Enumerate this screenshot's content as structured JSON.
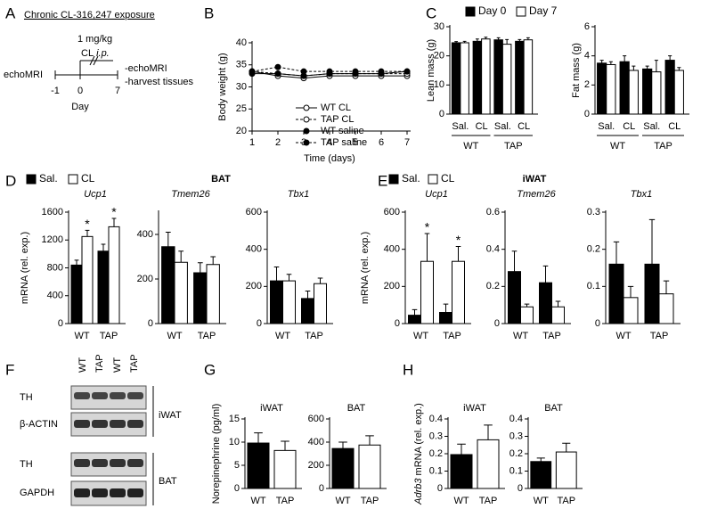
{
  "panel_labels": [
    "A",
    "B",
    "C",
    "D",
    "E",
    "F",
    "G",
    "H"
  ],
  "timeline": {
    "title": "Chronic CL-316,247 exposure",
    "dose": "1 mg/kg",
    "drug": "CL",
    "route": "i.p.",
    "start": "echoMRI",
    "ticks": [
      "-1",
      "0",
      "7"
    ],
    "axis": "Day",
    "end": [
      "-echoMRI",
      "-harvest tissues"
    ]
  },
  "headings": {
    "D": "BAT",
    "E": "iWAT"
  },
  "blot": {
    "lanes": [
      "WT",
      "TAP",
      "WT",
      "TAP"
    ],
    "rows": [
      "TH",
      "β-ACTIN",
      "TH",
      "GAPDH"
    ],
    "tissues": [
      "iWAT",
      "BAT"
    ]
  },
  "chart_data": [
    {
      "type": "line",
      "xlabel": "Time (days)",
      "ylabel": "Body weight (g)",
      "x": [
        1,
        2,
        3,
        4,
        5,
        6,
        7
      ],
      "xlim": [
        1,
        7
      ],
      "xticks": [
        1,
        2,
        3,
        4,
        5,
        6,
        7
      ],
      "ylim": [
        20,
        40
      ],
      "yticks": [
        20,
        25,
        30,
        35,
        40
      ],
      "series": [
        {
          "name": "WT CL",
          "color": "#000000",
          "filled": false,
          "dashed": false,
          "values": [
            33.5,
            32.5,
            32,
            32.5,
            32.5,
            32.5,
            32.5
          ]
        },
        {
          "name": "TAP CL",
          "color": "#000000",
          "filled": false,
          "dashed": true,
          "values": [
            33.5,
            33,
            32.5,
            33,
            33,
            33,
            33
          ]
        },
        {
          "name": "WT saline",
          "color": "#000000",
          "filled": true,
          "dashed": false,
          "values": [
            33,
            33,
            32.5,
            33,
            33,
            33,
            33.5
          ]
        },
        {
          "name": "TAP saline",
          "color": "#000000",
          "filled": true,
          "dashed": true,
          "values": [
            33.5,
            34.5,
            33.5,
            33.5,
            33.5,
            33.5,
            33.5
          ]
        }
      ]
    },
    {
      "type": "bar",
      "ylabel": "Lean mass (g)",
      "categories": [
        "Sal.",
        "CL",
        "Sal.",
        "CL"
      ],
      "groups": [
        "WT",
        "TAP"
      ],
      "ylim": [
        0,
        30
      ],
      "yticks": [
        0,
        10,
        20,
        30
      ],
      "series": [
        {
          "name": "Day 0",
          "color": "#000000",
          "values": [
            24.5,
            25,
            25.5,
            25
          ],
          "errors": [
            0.4,
            0.8,
            0.7,
            0.6
          ]
        },
        {
          "name": "Day 7",
          "color": "#ffffff",
          "values": [
            24.5,
            25.8,
            24,
            25.5
          ],
          "errors": [
            0.5,
            0.6,
            1.6,
            0.7
          ]
        }
      ]
    },
    {
      "type": "bar",
      "ylabel": "Fat mass (g)",
      "categories": [
        "Sal.",
        "CL",
        "Sal.",
        "CL"
      ],
      "groups": [
        "WT",
        "TAP"
      ],
      "ylim": [
        0,
        6
      ],
      "yticks": [
        0,
        2,
        4,
        6
      ],
      "series": [
        {
          "color": "#000000",
          "values": [
            3.5,
            3.6,
            3.1,
            3.7
          ],
          "errors": [
            0.2,
            0.4,
            0.2,
            0.3
          ]
        },
        {
          "color": "#ffffff",
          "values": [
            3.4,
            3.0,
            2.9,
            3.0
          ],
          "errors": [
            0.2,
            0.3,
            0.8,
            0.2
          ]
        }
      ]
    },
    {
      "type": "bar",
      "title": "Ucp1",
      "ylabel": "mRNA (rel. exp.)",
      "categories": [
        "WT",
        "TAP"
      ],
      "ylim": [
        0,
        1600
      ],
      "yticks": [
        0,
        400,
        800,
        1200,
        1600
      ],
      "series": [
        {
          "name": "Sal.",
          "color": "#000000",
          "values": [
            840,
            1040
          ],
          "errors": [
            70,
            100
          ]
        },
        {
          "name": "CL",
          "color": "#ffffff",
          "values": [
            1250,
            1390
          ],
          "errors": [
            90,
            120
          ],
          "significance": [
            "*",
            "*"
          ]
        }
      ]
    },
    {
      "type": "bar",
      "title": "Tmem26",
      "categories": [
        "WT",
        "TAP"
      ],
      "ylim": [
        0,
        500
      ],
      "yticks": [
        0,
        200,
        400
      ],
      "series": [
        {
          "color": "#000000",
          "values": [
            345,
            228
          ],
          "errors": [
            65,
            45
          ]
        },
        {
          "color": "#ffffff",
          "values": [
            275,
            265
          ],
          "errors": [
            50,
            35
          ]
        }
      ]
    },
    {
      "type": "bar",
      "title": "Tbx1",
      "categories": [
        "WT",
        "TAP"
      ],
      "ylim": [
        0,
        600
      ],
      "yticks": [
        0,
        200,
        400,
        600
      ],
      "series": [
        {
          "color": "#000000",
          "values": [
            230,
            135
          ],
          "errors": [
            75,
            40
          ]
        },
        {
          "color": "#ffffff",
          "values": [
            230,
            215
          ],
          "errors": [
            35,
            30
          ]
        }
      ]
    },
    {
      "type": "bar",
      "title": "Ucp1",
      "ylabel": "mRNA (rel. exp.)",
      "categories": [
        "WT",
        "TAP"
      ],
      "ylim": [
        0,
        600
      ],
      "yticks": [
        0,
        200,
        400,
        600
      ],
      "series": [
        {
          "name": "Sal.",
          "color": "#000000",
          "values": [
            45,
            60
          ],
          "errors": [
            30,
            45
          ]
        },
        {
          "name": "CL",
          "color": "#ffffff",
          "values": [
            335,
            335
          ],
          "errors": [
            150,
            80
          ],
          "significance": [
            "*",
            "*"
          ]
        }
      ]
    },
    {
      "type": "bar",
      "title": "Tmem26",
      "categories": [
        "WT",
        "TAP"
      ],
      "ylim": [
        0,
        0.6
      ],
      "yticks": [
        0,
        0.2,
        0.4,
        0.6
      ],
      "series": [
        {
          "color": "#000000",
          "values": [
            0.28,
            0.22
          ],
          "errors": [
            0.11,
            0.09
          ]
        },
        {
          "color": "#ffffff",
          "values": [
            0.09,
            0.09
          ],
          "errors": [
            0.015,
            0.03
          ]
        }
      ]
    },
    {
      "type": "bar",
      "title": "Tbx1",
      "categories": [
        "WT",
        "TAP"
      ],
      "ylim": [
        0,
        0.3
      ],
      "yticks": [
        0,
        0.1,
        0.2,
        0.3
      ],
      "series": [
        {
          "color": "#000000",
          "values": [
            0.16,
            0.16
          ],
          "errors": [
            0.06,
            0.12
          ]
        },
        {
          "color": "#ffffff",
          "values": [
            0.07,
            0.08
          ],
          "errors": [
            0.03,
            0.035
          ]
        }
      ]
    },
    {
      "type": "bar",
      "title": "iWAT",
      "ylabel": "Norepinephrine (pg/ml)",
      "categories": [
        "WT",
        "TAP"
      ],
      "ylim": [
        0,
        15
      ],
      "yticks": [
        0,
        5,
        10,
        15
      ],
      "series": [
        {
          "colors": [
            "#000000",
            "#ffffff"
          ],
          "values": [
            9.8,
            8.2
          ],
          "errors": [
            2.2,
            2.0
          ]
        }
      ]
    },
    {
      "type": "bar",
      "title": "BAT",
      "categories": [
        "WT",
        "TAP"
      ],
      "ylim": [
        0,
        600
      ],
      "yticks": [
        0,
        200,
        400,
        600
      ],
      "series": [
        {
          "colors": [
            "#000000",
            "#ffffff"
          ],
          "values": [
            345,
            375
          ],
          "errors": [
            55,
            80
          ]
        }
      ]
    },
    {
      "type": "bar",
      "title": "iWAT",
      "ylabel_gene": "Adrb3",
      "ylabel": "mRNA (rel. exp.)",
      "categories": [
        "WT",
        "TAP"
      ],
      "ylim": [
        0,
        0.4
      ],
      "yticks": [
        0,
        0.1,
        0.2,
        0.3,
        0.4
      ],
      "series": [
        {
          "colors": [
            "#000000",
            "#ffffff"
          ],
          "values": [
            0.195,
            0.28
          ],
          "errors": [
            0.06,
            0.085
          ]
        }
      ]
    },
    {
      "type": "bar",
      "title": "BAT",
      "categories": [
        "WT",
        "TAP"
      ],
      "ylim": [
        0,
        0.4
      ],
      "yticks": [
        0,
        0.1,
        0.2,
        0.3,
        0.4
      ],
      "series": [
        {
          "colors": [
            "#000000",
            "#ffffff"
          ],
          "values": [
            0.155,
            0.21
          ],
          "errors": [
            0.02,
            0.05
          ]
        }
      ]
    }
  ]
}
